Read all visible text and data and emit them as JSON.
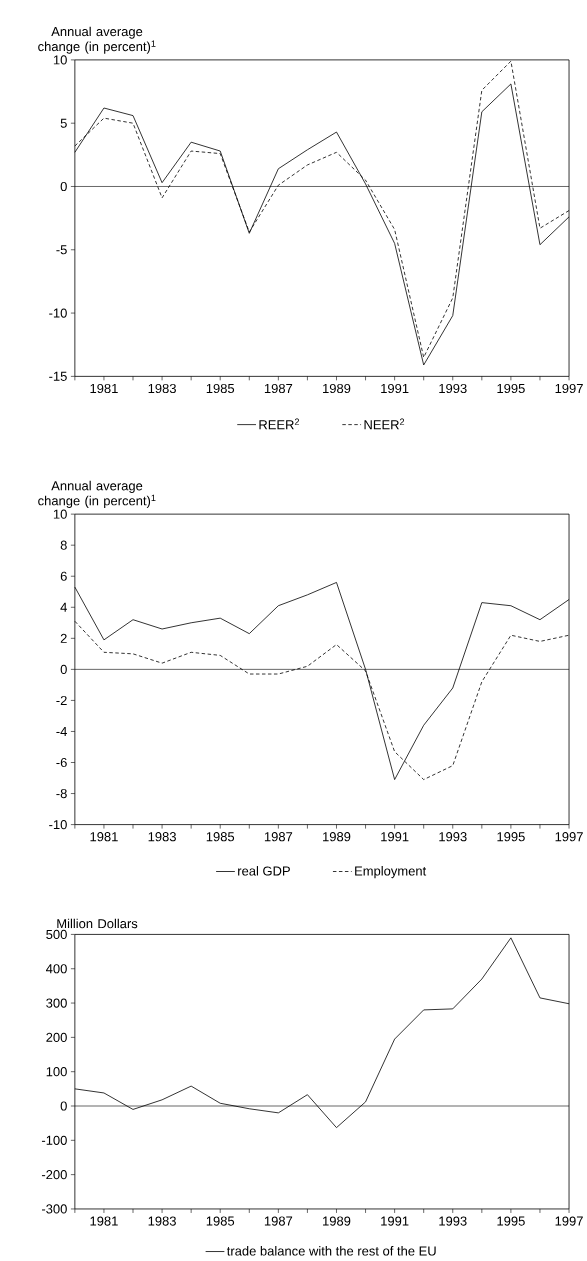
{
  "chart_data": [
    {
      "type": "line",
      "ylabel": "Annual average change (in percent)$^{1}$",
      "x": [
        1980,
        1981,
        1982,
        1983,
        1984,
        1985,
        1986,
        1987,
        1988,
        1989,
        1990,
        1991,
        1992,
        1993,
        1994,
        1995,
        1996,
        1997
      ],
      "series": [
        {
          "name": "REER$^{2}$",
          "color": "#000000",
          "line_style": "solid",
          "values": [
            2.7,
            6.2,
            5.6,
            0.3,
            3.5,
            2.8,
            -3.7,
            1.4,
            2.9,
            4.3,
            0.2,
            -4.5,
            -14.1,
            -10.2,
            5.9,
            8.1,
            -4.6,
            -2.4
          ]
        },
        {
          "name": "NEER$^{2}$",
          "color": "#000000",
          "line_style": "dashed",
          "values": [
            3.2,
            5.4,
            5.0,
            -0.9,
            2.8,
            2.6,
            -3.6,
            0.1,
            1.7,
            2.7,
            0.5,
            -3.4,
            -13.5,
            -8.8,
            7.6,
            9.9,
            -3.3,
            -1.9
          ]
        }
      ],
      "xlim": [
        1980,
        1997
      ],
      "ylim": [
        -15,
        10
      ],
      "xticks": [
        {
          "value": 1980,
          "label": null
        },
        1981,
        {
          "value": 1982,
          "label": null
        },
        1983,
        {
          "value": 1984,
          "label": null
        },
        1985,
        {
          "value": 1986,
          "label": null
        },
        1987,
        {
          "value": 1988,
          "label": null
        },
        1989,
        {
          "value": 1990,
          "label": null
        },
        1991,
        {
          "value": 1992,
          "label": null
        },
        1993,
        {
          "value": 1994,
          "label": null
        },
        1995,
        {
          "value": 1996,
          "label": null
        },
        1997
      ],
      "yticks": [
        -15,
        -10,
        -5,
        0,
        5,
        10
      ],
      "legend": "bottom",
      "grid": false,
      "ref_lines": [
        {
          "axis": "y",
          "value": 0,
          "color": "#000000"
        }
      ]
    },
    {
      "type": "line",
      "ylabel": "Annual average change (in percent)$^{1}$",
      "x": [
        1980,
        1981,
        1982,
        1983,
        1984,
        1985,
        1986,
        1987,
        1988,
        1989,
        1990,
        1991,
        1992,
        1993,
        1994,
        1995,
        1996,
        1997
      ],
      "series": [
        {
          "name": "real GDP",
          "color": "#000000",
          "line_style": "solid",
          "values": [
            5.3,
            1.9,
            3.2,
            2.6,
            3.0,
            3.3,
            2.3,
            4.1,
            4.8,
            5.6,
            0.0,
            -7.1,
            -3.6,
            -1.2,
            4.3,
            4.1,
            3.2,
            4.5
          ]
        },
        {
          "name": "Employment",
          "color": "#000000",
          "line_style": "dashed",
          "values": [
            3.1,
            1.1,
            1.0,
            0.4,
            1.1,
            0.9,
            -0.3,
            -0.3,
            0.2,
            1.6,
            -0.1,
            -5.3,
            -7.1,
            -6.2,
            -0.8,
            2.2,
            1.8,
            2.2
          ]
        }
      ],
      "xlim": [
        1980,
        1997
      ],
      "ylim": [
        -10,
        10
      ],
      "xticks": [
        {
          "value": 1980,
          "label": null
        },
        1981,
        {
          "value": 1982,
          "label": null
        },
        1983,
        {
          "value": 1984,
          "label": null
        },
        1985,
        {
          "value": 1986,
          "label": null
        },
        1987,
        {
          "value": 1988,
          "label": null
        },
        1989,
        {
          "value": 1990,
          "label": null
        },
        1991,
        {
          "value": 1992,
          "label": null
        },
        1993,
        {
          "value": 1994,
          "label": null
        },
        1995,
        {
          "value": 1996,
          "label": null
        },
        1997
      ],
      "yticks": [
        -10,
        -8,
        -6,
        -4,
        -2,
        0,
        2,
        4,
        6,
        8,
        10
      ],
      "legend": "bottom",
      "grid": false,
      "ref_lines": [
        {
          "axis": "y",
          "value": 0,
          "color": "#000000"
        }
      ]
    },
    {
      "type": "line",
      "ylabel": "Million Dollars",
      "x": [
        1980,
        1981,
        1982,
        1983,
        1984,
        1985,
        1986,
        1987,
        1988,
        1989,
        1990,
        1991,
        1992,
        1993,
        1994,
        1995,
        1996,
        1997
      ],
      "series": [
        {
          "name": "trade balance with the rest of the EU",
          "color": "#000000",
          "line_style": "solid",
          "values": [
            50,
            38,
            -10,
            18,
            58,
            8,
            -8,
            -20,
            33,
            -63,
            12,
            195,
            280,
            283,
            370,
            490,
            315,
            298
          ]
        }
      ],
      "xlim": [
        1980,
        1997
      ],
      "ylim": [
        -300,
        500
      ],
      "xticks": [
        {
          "value": 1980,
          "label": null
        },
        1981,
        {
          "value": 1982,
          "label": null
        },
        1983,
        {
          "value": 1984,
          "label": null
        },
        1985,
        {
          "value": 1986,
          "label": null
        },
        1987,
        {
          "value": 1988,
          "label": null
        },
        1989,
        {
          "value": 1990,
          "label": null
        },
        1991,
        {
          "value": 1992,
          "label": null
        },
        1993,
        {
          "value": 1994,
          "label": null
        },
        1995,
        {
          "value": 1996,
          "label": null
        },
        1997
      ],
      "yticks": [
        -300,
        -200,
        -100,
        0,
        100,
        200,
        300,
        400,
        500
      ],
      "legend": "bottom",
      "grid": false,
      "ref_lines": [
        {
          "axis": "y",
          "value": 0,
          "color": "#000000"
        }
      ]
    }
  ]
}
